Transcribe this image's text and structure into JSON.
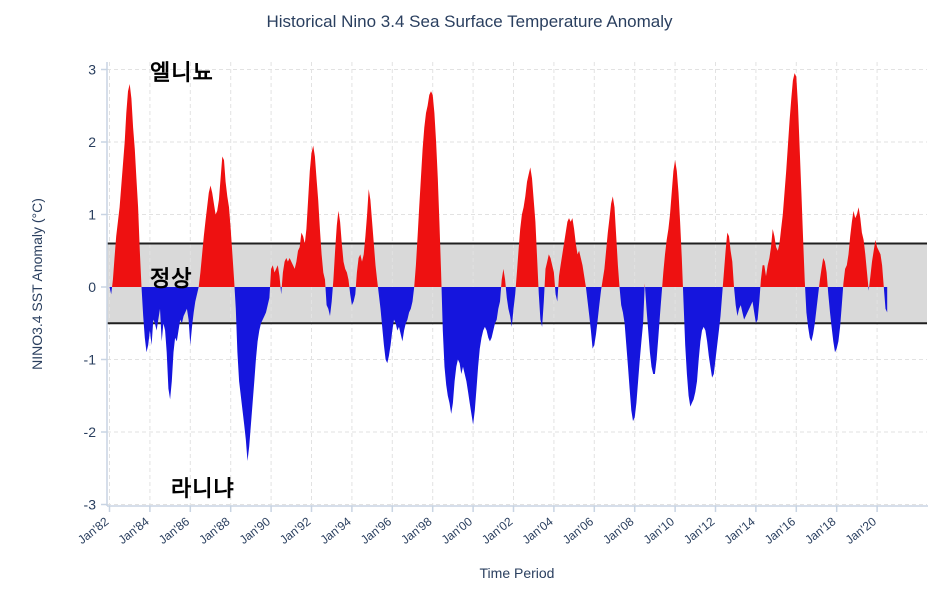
{
  "title": {
    "text": "Historical Nino 3.4 Sea Surface Temperature Anomaly"
  },
  "annotations": {
    "el_nino": "엘니뇨",
    "normal": "정상",
    "la_nina": "라니냐"
  },
  "colors": {
    "el_nino_fill": "#ee1111",
    "la_nina_fill": "#1515dd",
    "normal_band": "#d9d9d9",
    "band_line": "#1f1f1f",
    "grid": "#e2e2e2",
    "axis_line": "#c8d4e3",
    "tick_label": "#2a3f5f",
    "title": "#2a3f5f",
    "annotation": "#000000"
  },
  "chart_data": {
    "type": "area",
    "title": "Historical Nino 3.4 Sea Surface Temperature Anomaly",
    "xlabel": "Time Period",
    "ylabel": "NINO3.4 SST Anomaly (°C)",
    "ylim": [
      -3,
      3
    ],
    "yticks": [
      3,
      2,
      1,
      0,
      -1,
      -2,
      -3
    ],
    "xtick_years": [
      1982,
      1984,
      1986,
      1988,
      1990,
      1992,
      1994,
      1996,
      1998,
      2000,
      2002,
      2004,
      2006,
      2008,
      2010,
      2012,
      2014,
      2016,
      2018,
      2020
    ],
    "xtick_labels": [
      "Jan'82",
      "Jan'84",
      "Jan'86",
      "Jan'88",
      "Jan'90",
      "Jan'92",
      "Jan'94",
      "Jan'96",
      "Jan'98",
      "Jan'00",
      "Jan'02",
      "Jan'04",
      "Jan'06",
      "Jan'08",
      "Jan'10",
      "Jan'12",
      "Jan'14",
      "Jan'16",
      "Jan'18",
      "Jan'20"
    ],
    "grid": true,
    "legend": "none",
    "normal_band": {
      "lower": -0.5,
      "upper": 0.6,
      "label": "정상"
    },
    "positive_label": "엘니뇨",
    "negative_label": "라니냐",
    "series": [
      {
        "name": "Nino 3.4 SST Anomaly",
        "start": "1982-01",
        "end": "2020-07",
        "cadence": "monthly",
        "monthly_values": [
          0.0,
          -0.1,
          0.1,
          0.4,
          0.7,
          0.9,
          1.1,
          1.4,
          1.7,
          2.0,
          2.4,
          2.7,
          2.8,
          2.6,
          2.2,
          1.9,
          1.5,
          1.1,
          0.5,
          0.0,
          -0.4,
          -0.7,
          -0.9,
          -0.8,
          -0.6,
          -0.8,
          -0.45,
          -0.5,
          -0.6,
          -0.45,
          -0.3,
          -0.75,
          -0.5,
          -0.6,
          -0.9,
          -1.4,
          -1.55,
          -1.3,
          -0.9,
          -0.7,
          -0.75,
          -0.6,
          -0.45,
          -0.5,
          -0.4,
          -0.35,
          -0.3,
          -0.45,
          -0.8,
          -0.55,
          -0.35,
          -0.2,
          -0.1,
          0.0,
          0.2,
          0.45,
          0.7,
          0.9,
          1.1,
          1.3,
          1.4,
          1.3,
          1.15,
          1.0,
          1.05,
          1.2,
          1.5,
          1.8,
          1.75,
          1.45,
          1.25,
          1.1,
          0.8,
          0.45,
          0.1,
          -0.3,
          -0.9,
          -1.3,
          -1.5,
          -1.7,
          -1.9,
          -2.1,
          -2.4,
          -2.2,
          -1.9,
          -1.6,
          -1.3,
          -1.0,
          -0.75,
          -0.6,
          -0.5,
          -0.45,
          -0.4,
          -0.35,
          -0.25,
          -0.15,
          0.25,
          0.3,
          0.2,
          0.25,
          0.3,
          0.15,
          -0.1,
          0.2,
          0.35,
          0.4,
          0.35,
          0.4,
          0.35,
          0.3,
          0.25,
          0.35,
          0.5,
          0.55,
          0.75,
          0.7,
          0.6,
          0.8,
          1.2,
          1.6,
          1.85,
          1.95,
          1.8,
          1.5,
          1.2,
          0.8,
          0.45,
          0.2,
          0.1,
          -0.25,
          -0.3,
          -0.4,
          -0.2,
          0.1,
          0.5,
          0.85,
          1.05,
          0.9,
          0.6,
          0.35,
          0.25,
          0.2,
          0.1,
          -0.1,
          -0.25,
          -0.2,
          -0.1,
          0.2,
          0.4,
          0.45,
          0.35,
          0.45,
          0.7,
          1.0,
          1.35,
          1.2,
          0.9,
          0.6,
          0.3,
          0.1,
          -0.1,
          -0.3,
          -0.55,
          -0.8,
          -1.0,
          -1.05,
          -0.95,
          -0.8,
          -0.6,
          -0.45,
          -0.5,
          -0.6,
          -0.55,
          -0.65,
          -0.75,
          -0.6,
          -0.5,
          -0.45,
          -0.35,
          -0.3,
          -0.2,
          0.0,
          0.3,
          0.7,
          1.1,
          1.5,
          1.9,
          2.2,
          2.4,
          2.5,
          2.65,
          2.7,
          2.65,
          2.4,
          2.0,
          1.5,
          0.9,
          0.2,
          -0.6,
          -1.1,
          -1.35,
          -1.5,
          -1.6,
          -1.75,
          -1.6,
          -1.3,
          -1.1,
          -1.0,
          -1.05,
          -1.2,
          -1.1,
          -1.2,
          -1.3,
          -1.45,
          -1.6,
          -1.75,
          -1.9,
          -1.7,
          -1.4,
          -1.1,
          -0.85,
          -0.7,
          -0.6,
          -0.55,
          -0.6,
          -0.7,
          -0.75,
          -0.7,
          -0.6,
          -0.5,
          -0.45,
          -0.3,
          -0.2,
          0.1,
          0.25,
          0.1,
          -0.15,
          -0.3,
          -0.4,
          -0.55,
          -0.3,
          -0.1,
          0.2,
          0.5,
          0.8,
          1.0,
          1.1,
          1.25,
          1.45,
          1.55,
          1.65,
          1.5,
          1.2,
          0.9,
          0.4,
          -0.1,
          -0.45,
          -0.55,
          -0.2,
          0.25,
          0.35,
          0.45,
          0.4,
          0.3,
          0.2,
          -0.1,
          -0.2,
          0.15,
          0.3,
          0.45,
          0.6,
          0.75,
          0.9,
          0.95,
          0.9,
          0.95,
          0.8,
          0.6,
          0.45,
          0.5,
          0.4,
          0.3,
          0.15,
          0.0,
          -0.2,
          -0.4,
          -0.6,
          -0.85,
          -0.8,
          -0.65,
          -0.45,
          -0.25,
          -0.05,
          0.1,
          0.25,
          0.5,
          0.75,
          0.95,
          1.15,
          1.25,
          1.1,
          0.7,
          0.3,
          0.0,
          -0.25,
          -0.35,
          -0.5,
          -0.8,
          -1.1,
          -1.4,
          -1.7,
          -1.85,
          -1.8,
          -1.6,
          -1.3,
          -1.0,
          -0.75,
          -0.5,
          0.05,
          -0.3,
          -0.6,
          -0.9,
          -1.1,
          -1.2,
          -1.2,
          -1.0,
          -0.7,
          -0.4,
          -0.1,
          0.2,
          0.45,
          0.65,
          0.8,
          1.0,
          1.3,
          1.6,
          1.75,
          1.6,
          1.3,
          0.9,
          0.4,
          -0.2,
          -0.8,
          -1.2,
          -1.5,
          -1.65,
          -1.6,
          -1.55,
          -1.45,
          -1.3,
          -1.0,
          -0.75,
          -0.6,
          -0.55,
          -0.6,
          -0.75,
          -0.95,
          -1.1,
          -1.25,
          -1.2,
          -1.0,
          -0.8,
          -0.6,
          -0.4,
          -0.1,
          0.2,
          0.5,
          0.75,
          0.7,
          0.5,
          0.35,
          0.0,
          -0.25,
          -0.4,
          -0.3,
          -0.25,
          -0.35,
          -0.45,
          -0.4,
          -0.35,
          -0.3,
          -0.25,
          -0.2,
          -0.35,
          -0.5,
          -0.45,
          -0.2,
          0.1,
          0.3,
          0.3,
          0.15,
          0.3,
          0.4,
          0.55,
          0.8,
          0.7,
          0.55,
          0.5,
          0.6,
          0.8,
          1.0,
          1.3,
          1.6,
          1.95,
          2.3,
          2.6,
          2.85,
          2.95,
          2.9,
          2.5,
          1.9,
          1.3,
          0.7,
          0.1,
          -0.35,
          -0.55,
          -0.7,
          -0.75,
          -0.65,
          -0.5,
          -0.3,
          -0.1,
          0.1,
          0.25,
          0.4,
          0.35,
          0.2,
          -0.1,
          -0.35,
          -0.55,
          -0.75,
          -0.9,
          -0.85,
          -0.75,
          -0.55,
          -0.25,
          0.05,
          0.25,
          0.3,
          0.45,
          0.7,
          0.9,
          1.05,
          0.95,
          1.0,
          1.1,
          0.95,
          0.75,
          0.65,
          0.45,
          0.2,
          -0.05,
          0.15,
          0.35,
          0.5,
          0.65,
          0.55,
          0.5,
          0.45,
          0.3,
          0.0,
          -0.3,
          -0.35
        ]
      }
    ]
  }
}
